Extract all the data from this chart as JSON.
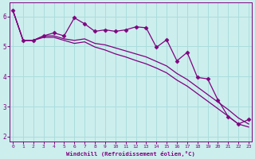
{
  "xlabel": "Windchill (Refroidissement éolien,°C)",
  "background_color": "#cceeed",
  "line_color": "#800080",
  "grid_color": "#aadddd",
  "x_values": [
    0,
    1,
    2,
    3,
    4,
    5,
    6,
    7,
    8,
    9,
    10,
    11,
    12,
    13,
    14,
    15,
    16,
    17,
    18,
    19,
    20,
    21,
    22,
    23
  ],
  "series_wiggly": [
    6.2,
    5.2,
    5.2,
    5.35,
    5.45,
    5.35,
    5.95,
    5.75,
    5.5,
    5.55,
    5.5,
    5.55,
    5.65,
    5.62,
    4.97,
    5.22,
    4.52,
    4.8,
    3.97,
    3.92,
    3.22,
    2.67,
    2.42,
    2.57
  ],
  "series_diag1": [
    6.2,
    5.2,
    5.2,
    5.35,
    5.35,
    5.25,
    5.2,
    5.25,
    5.1,
    5.05,
    4.95,
    4.85,
    4.75,
    4.65,
    4.5,
    4.35,
    4.1,
    3.9,
    3.65,
    3.4,
    3.15,
    2.9,
    2.62,
    2.42
  ],
  "series_diag2": [
    6.2,
    5.2,
    5.2,
    5.3,
    5.3,
    5.2,
    5.1,
    5.15,
    4.98,
    4.88,
    4.75,
    4.65,
    4.53,
    4.42,
    4.28,
    4.12,
    3.88,
    3.68,
    3.43,
    3.18,
    2.93,
    2.68,
    2.42,
    2.32
  ],
  "ylim": [
    1.85,
    6.45
  ],
  "yticks": [
    2,
    3,
    4,
    5,
    6
  ],
  "xlim": [
    -0.3,
    23.3
  ],
  "xticks": [
    0,
    1,
    2,
    3,
    4,
    5,
    6,
    7,
    8,
    9,
    10,
    11,
    12,
    13,
    14,
    15,
    16,
    17,
    18,
    19,
    20,
    21,
    22,
    23
  ]
}
